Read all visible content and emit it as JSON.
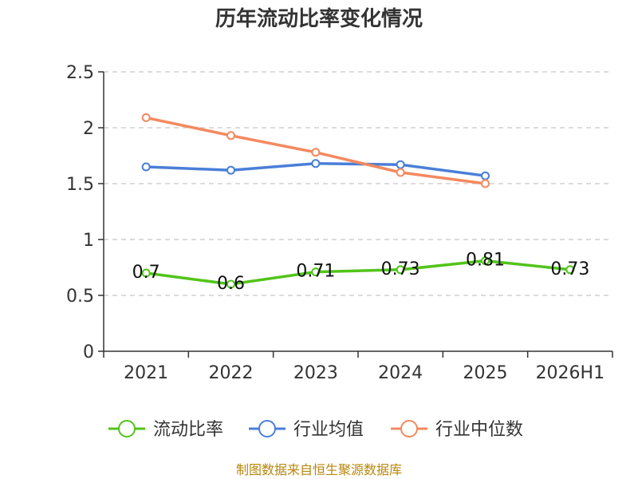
{
  "chart_data": {
    "type": "line",
    "title": "历年流动比率变化情况",
    "categories": [
      "2021",
      "2022",
      "2023",
      "2024",
      "2025",
      "2026H1"
    ],
    "ylim": [
      0,
      2.5
    ],
    "yticks": [
      "0",
      "0.5",
      "1",
      "1.5",
      "2",
      "2.5"
    ],
    "grid": true,
    "legend_position": "bottom",
    "series": [
      {
        "name": "流动比率",
        "color": "#52c41a",
        "values": [
          0.7,
          0.6,
          0.71,
          0.73,
          0.81,
          0.73
        ],
        "labels": [
          "0.7",
          "0.6",
          "0.71",
          "0.73",
          "0.81",
          "0.73"
        ]
      },
      {
        "name": "行业均值",
        "color": "#4a7fd8",
        "values": [
          1.65,
          1.62,
          1.68,
          1.67,
          1.57,
          null
        ]
      },
      {
        "name": "行业中位数",
        "color": "#f4895f",
        "values": [
          2.09,
          1.93,
          1.78,
          1.6,
          1.5,
          null
        ]
      }
    ],
    "source": "制图数据来自恒生聚源数据库"
  }
}
